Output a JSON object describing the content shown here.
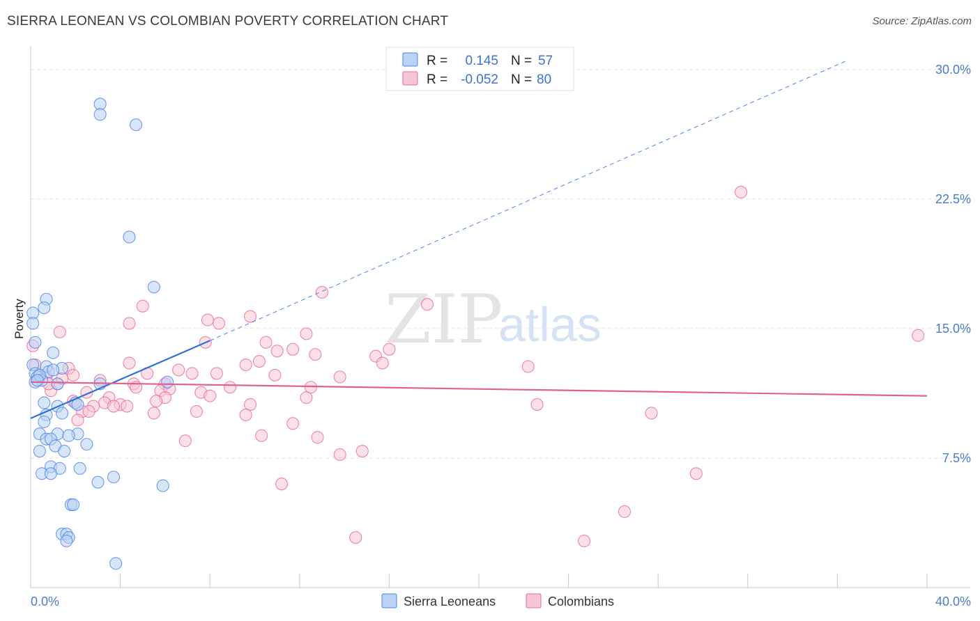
{
  "title": "SIERRA LEONEAN VS COLOMBIAN POVERTY CORRELATION CHART",
  "source": "Source: ZipAtlas.com",
  "watermark": {
    "zip": "ZIP",
    "atlas": "atlas"
  },
  "colors": {
    "blue": "#4a86e8",
    "blue_fill": "#bad2f4",
    "blue_line": "#2e6fd6",
    "pink": "#e86a98",
    "pink_fill": "#f7c6d6",
    "pink_line": "#e0608e",
    "grid": "#e2e2e2",
    "axis_text": "#4a7cc9"
  },
  "stats": {
    "row1": {
      "r_label": "R =",
      "r_value": "0.145",
      "n_label": "N =",
      "n_value": "57"
    },
    "row2": {
      "r_label": "R =",
      "r_value": "-0.052",
      "n_label": "N =",
      "n_value": "80"
    }
  },
  "legend": {
    "series1": "Sierra Leoneans",
    "series2": "Colombians"
  },
  "chart_data": {
    "type": "scatter",
    "title": "SIERRA LEONEAN VS COLOMBIAN POVERTY CORRELATION CHART",
    "xlabel": "",
    "ylabel": "Poverty",
    "xlim": [
      0,
      40
    ],
    "ylim": [
      0,
      30.8
    ],
    "x_tick_labels": [
      "0.0%",
      "40.0%"
    ],
    "y_ticks": [
      7.5,
      15.0,
      22.5,
      30.0
    ],
    "y_tick_labels": [
      "7.5%",
      "15.0%",
      "22.5%",
      "30.0%"
    ],
    "legend_position": "bottom",
    "series": [
      {
        "name": "Sierra Leoneans",
        "r": 0.145,
        "n": 57,
        "trend": {
          "x0": 0,
          "y0": 9.8,
          "x1": 8,
          "y1": 14.3,
          "dashed_to_x": 36.4,
          "dashed_to_y": 30.5
        },
        "points": [
          [
            3.1,
            28.0
          ],
          [
            3.1,
            27.4
          ],
          [
            4.7,
            26.8
          ],
          [
            4.4,
            20.3
          ],
          [
            5.5,
            17.4
          ],
          [
            0.7,
            16.7
          ],
          [
            0.6,
            16.2
          ],
          [
            0.1,
            15.9
          ],
          [
            0.1,
            15.3
          ],
          [
            0.2,
            14.2
          ],
          [
            1.0,
            13.6
          ],
          [
            0.1,
            12.9
          ],
          [
            0.7,
            12.8
          ],
          [
            1.4,
            12.7
          ],
          [
            0.8,
            12.5
          ],
          [
            0.2,
            12.4
          ],
          [
            0.3,
            12.2
          ],
          [
            0.5,
            12.0
          ],
          [
            0.2,
            11.9
          ],
          [
            3.1,
            11.8
          ],
          [
            6.1,
            11.9
          ],
          [
            1.2,
            11.8
          ],
          [
            0.6,
            10.7
          ],
          [
            2.0,
            10.7
          ],
          [
            1.2,
            10.5
          ],
          [
            1.4,
            10.1
          ],
          [
            0.7,
            10.0
          ],
          [
            0.6,
            9.6
          ],
          [
            0.4,
            8.9
          ],
          [
            1.2,
            8.9
          ],
          [
            2.1,
            8.9
          ],
          [
            1.7,
            8.8
          ],
          [
            0.7,
            8.6
          ],
          [
            0.9,
            8.6
          ],
          [
            1.1,
            8.2
          ],
          [
            2.5,
            8.3
          ],
          [
            0.4,
            7.9
          ],
          [
            1.5,
            7.9
          ],
          [
            0.9,
            7.0
          ],
          [
            1.3,
            6.9
          ],
          [
            2.2,
            6.9
          ],
          [
            0.5,
            6.6
          ],
          [
            0.9,
            6.6
          ],
          [
            3.0,
            6.1
          ],
          [
            3.7,
            6.4
          ],
          [
            5.9,
            5.9
          ],
          [
            1.8,
            4.8
          ],
          [
            1.9,
            4.8
          ],
          [
            1.4,
            3.1
          ],
          [
            1.6,
            3.1
          ],
          [
            1.7,
            2.9
          ],
          [
            1.6,
            2.7
          ],
          [
            3.8,
            1.4
          ],
          [
            0.4,
            12.3
          ],
          [
            1.0,
            12.6
          ],
          [
            0.3,
            12.0
          ],
          [
            2.1,
            10.6
          ]
        ]
      },
      {
        "name": "Colombians",
        "r": -0.052,
        "n": 80,
        "trend": {
          "x0": 0,
          "y0": 11.9,
          "x1": 40,
          "y1": 11.1
        },
        "points": [
          [
            31.7,
            22.9
          ],
          [
            13.0,
            17.1
          ],
          [
            17.7,
            16.4
          ],
          [
            5.0,
            16.3
          ],
          [
            9.8,
            15.7
          ],
          [
            7.9,
            15.5
          ],
          [
            8.4,
            15.3
          ],
          [
            4.4,
            15.3
          ],
          [
            1.3,
            14.8
          ],
          [
            12.3,
            14.7
          ],
          [
            7.8,
            14.2
          ],
          [
            0.1,
            14.0
          ],
          [
            10.5,
            14.2
          ],
          [
            11.0,
            13.7
          ],
          [
            11.7,
            13.8
          ],
          [
            16.0,
            13.8
          ],
          [
            12.7,
            13.5
          ],
          [
            15.4,
            13.4
          ],
          [
            4.4,
            13.0
          ],
          [
            10.2,
            13.1
          ],
          [
            15.7,
            13.0
          ],
          [
            9.6,
            12.9
          ],
          [
            22.2,
            12.8
          ],
          [
            0.2,
            12.9
          ],
          [
            1.7,
            12.7
          ],
          [
            6.6,
            12.6
          ],
          [
            5.2,
            12.4
          ],
          [
            7.2,
            12.4
          ],
          [
            8.3,
            12.4
          ],
          [
            10.9,
            12.3
          ],
          [
            13.8,
            12.2
          ],
          [
            1.9,
            12.3
          ],
          [
            0.4,
            12.2
          ],
          [
            0.7,
            12.2
          ],
          [
            3.1,
            12.0
          ],
          [
            4.6,
            11.8
          ],
          [
            6.0,
            11.8
          ],
          [
            1.2,
            11.8
          ],
          [
            2.5,
            11.3
          ],
          [
            5.8,
            11.4
          ],
          [
            7.6,
            11.3
          ],
          [
            6.2,
            11.5
          ],
          [
            12.5,
            11.6
          ],
          [
            8.9,
            11.6
          ],
          [
            0.9,
            11.4
          ],
          [
            4.7,
            11.6
          ],
          [
            8.0,
            11.1
          ],
          [
            6.0,
            11.0
          ],
          [
            12.3,
            11.0
          ],
          [
            3.5,
            11.0
          ],
          [
            4.0,
            10.6
          ],
          [
            3.3,
            10.7
          ],
          [
            9.8,
            10.6
          ],
          [
            2.8,
            10.5
          ],
          [
            22.6,
            10.6
          ],
          [
            1.9,
            10.8
          ],
          [
            5.6,
            10.8
          ],
          [
            2.3,
            10.2
          ],
          [
            2.6,
            10.2
          ],
          [
            9.6,
            10.0
          ],
          [
            7.4,
            10.2
          ],
          [
            27.7,
            10.1
          ],
          [
            5.5,
            10.1
          ],
          [
            3.7,
            10.5
          ],
          [
            2.1,
            9.7
          ],
          [
            11.7,
            9.5
          ],
          [
            10.3,
            8.8
          ],
          [
            12.8,
            8.7
          ],
          [
            6.9,
            8.5
          ],
          [
            14.8,
            7.9
          ],
          [
            13.8,
            7.7
          ],
          [
            29.7,
            6.6
          ],
          [
            11.2,
            6.0
          ],
          [
            26.5,
            4.4
          ],
          [
            14.5,
            2.9
          ],
          [
            24.7,
            2.7
          ],
          [
            39.6,
            14.6
          ],
          [
            0.8,
            11.8
          ],
          [
            1.4,
            12.1
          ],
          [
            4.3,
            10.5
          ]
        ]
      }
    ]
  }
}
